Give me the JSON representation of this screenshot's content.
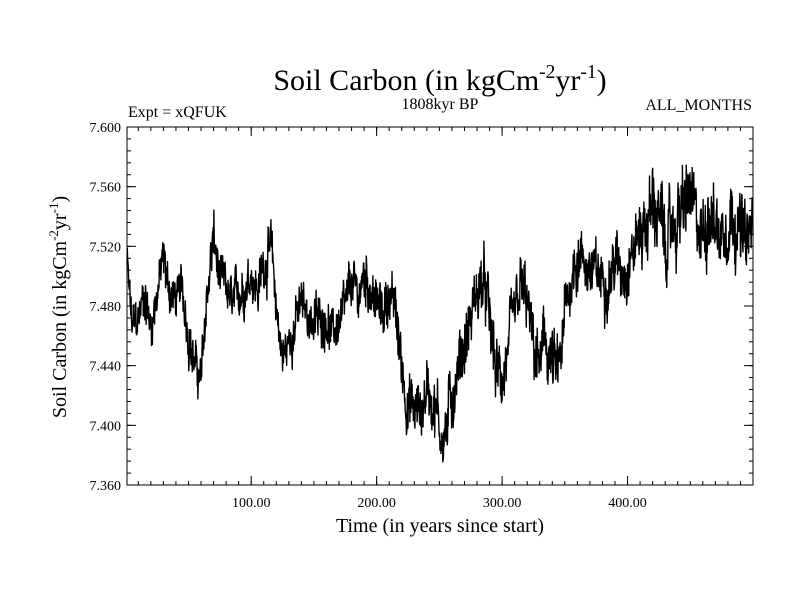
{
  "chart_data": {
    "type": "line",
    "title": {
      "base": "Soil Carbon (in kgCm",
      "sup1": "-2",
      "mid": "yr",
      "sup2": "-1",
      "end": ")"
    },
    "left_label": "Expt = xQFUK",
    "center_label": "1808kyr BP",
    "right_label": "ALL_MONTHS",
    "xlabel": "Time (in years since start)",
    "ylabel": {
      "base": "Soil Carbon (in kgCm",
      "sup1": "-2",
      "mid": "yr",
      "sup2": "-1",
      "end": ")"
    },
    "xlim": [
      1,
      500
    ],
    "ylim": [
      7.36,
      7.6
    ],
    "x_ticks": [
      {
        "value": 100,
        "label": "100.00"
      },
      {
        "value": 200,
        "label": "200.00"
      },
      {
        "value": 300,
        "label": "300.00"
      },
      {
        "value": 400,
        "label": "400.00"
      }
    ],
    "y_ticks": [
      {
        "value": 7.36,
        "label": "7.360"
      },
      {
        "value": 7.4,
        "label": "7.400"
      },
      {
        "value": 7.44,
        "label": "7.440"
      },
      {
        "value": 7.48,
        "label": "7.480"
      },
      {
        "value": 7.52,
        "label": "7.520"
      },
      {
        "value": 7.56,
        "label": "7.560"
      },
      {
        "value": 7.6,
        "label": "7.600"
      }
    ],
    "x_minor_step": 10,
    "y_minor_step": 0.008,
    "grid": false,
    "series": [
      {
        "name": "Soil Carbon",
        "color": "#000000",
        "x": [
          1,
          5,
          10,
          15,
          20,
          25,
          30,
          35,
          40,
          45,
          50,
          55,
          60,
          65,
          70,
          75,
          80,
          85,
          90,
          95,
          100,
          105,
          110,
          115,
          120,
          125,
          130,
          135,
          140,
          145,
          150,
          155,
          160,
          165,
          170,
          175,
          180,
          185,
          190,
          195,
          200,
          205,
          210,
          215,
          220,
          225,
          230,
          235,
          240,
          245,
          250,
          255,
          260,
          265,
          270,
          275,
          280,
          285,
          290,
          295,
          300,
          305,
          310,
          315,
          320,
          325,
          330,
          335,
          340,
          345,
          350,
          355,
          360,
          365,
          370,
          375,
          380,
          385,
          390,
          395,
          400,
          405,
          410,
          415,
          420,
          425,
          430,
          435,
          440,
          445,
          450,
          455,
          460,
          465,
          470,
          475,
          480,
          485,
          490,
          495,
          500
        ],
        "values": [
          7.51,
          7.465,
          7.47,
          7.49,
          7.465,
          7.49,
          7.51,
          7.49,
          7.485,
          7.49,
          7.465,
          7.44,
          7.43,
          7.49,
          7.525,
          7.495,
          7.49,
          7.48,
          7.49,
          7.495,
          7.505,
          7.49,
          7.51,
          7.52,
          7.48,
          7.445,
          7.455,
          7.47,
          7.48,
          7.475,
          7.47,
          7.47,
          7.475,
          7.46,
          7.47,
          7.475,
          7.495,
          7.485,
          7.5,
          7.495,
          7.48,
          7.475,
          7.49,
          7.475,
          7.44,
          7.415,
          7.41,
          7.41,
          7.425,
          7.42,
          7.4,
          7.395,
          7.42,
          7.44,
          7.455,
          7.47,
          7.49,
          7.495,
          7.47,
          7.435,
          7.43,
          7.45,
          7.47,
          7.49,
          7.48,
          7.45,
          7.44,
          7.455,
          7.44,
          7.43,
          7.47,
          7.5,
          7.515,
          7.51,
          7.505,
          7.5,
          7.5,
          7.5,
          7.51,
          7.505,
          7.51,
          7.52,
          7.53,
          7.535,
          7.55,
          7.54,
          7.52,
          7.53,
          7.54,
          7.545,
          7.555,
          7.53,
          7.525,
          7.55,
          7.535,
          7.53,
          7.54,
          7.545,
          7.53,
          7.52,
          7.535
        ],
        "band": [
          0.018,
          0.022,
          0.02,
          0.024,
          0.022,
          0.02,
          0.024,
          0.02,
          0.022,
          0.02,
          0.024,
          0.022,
          0.02,
          0.026,
          0.026,
          0.024,
          0.022,
          0.02,
          0.022,
          0.024,
          0.022,
          0.022,
          0.026,
          0.026,
          0.024,
          0.022,
          0.02,
          0.024,
          0.022,
          0.022,
          0.022,
          0.024,
          0.022,
          0.02,
          0.022,
          0.024,
          0.024,
          0.022,
          0.026,
          0.024,
          0.022,
          0.024,
          0.026,
          0.024,
          0.028,
          0.03,
          0.03,
          0.028,
          0.03,
          0.032,
          0.032,
          0.03,
          0.03,
          0.032,
          0.03,
          0.028,
          0.03,
          0.03,
          0.032,
          0.03,
          0.028,
          0.028,
          0.03,
          0.032,
          0.028,
          0.03,
          0.03,
          0.032,
          0.034,
          0.032,
          0.03,
          0.03,
          0.028,
          0.026,
          0.026,
          0.026,
          0.028,
          0.026,
          0.028,
          0.028,
          0.028,
          0.03,
          0.032,
          0.034,
          0.036,
          0.036,
          0.032,
          0.034,
          0.036,
          0.038,
          0.036,
          0.034,
          0.036,
          0.038,
          0.036,
          0.036,
          0.034,
          0.036,
          0.034,
          0.032,
          0.034
        ]
      }
    ]
  }
}
